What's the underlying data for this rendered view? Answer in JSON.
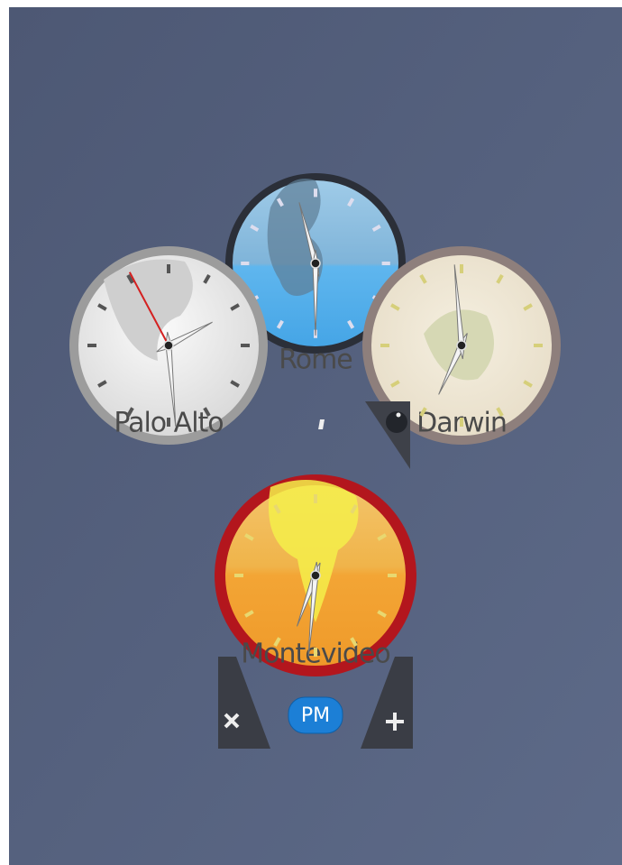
{
  "clocks": [
    {
      "city": "Palo Alto"
    },
    {
      "city": "Rome"
    },
    {
      "city": "Darwin"
    },
    {
      "city": "Montevideo"
    }
  ],
  "badge": "PM"
}
